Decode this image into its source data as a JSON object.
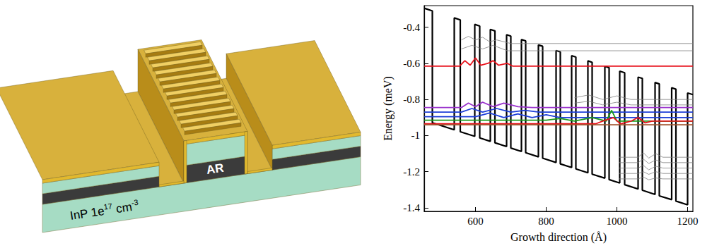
{
  "illustration": {
    "ridge_label": "AR",
    "substrate_label": [
      {
        "text": "InP 1e"
      },
      {
        "text": "17",
        "sup": true
      },
      {
        "text": " cm"
      },
      {
        "text": "-3",
        "sup": true
      }
    ]
  },
  "chart_data": {
    "type": "line",
    "xlabel": "Growth direction (Å)",
    "ylabel": "Energy (meV)",
    "xlim": [
      455,
      1215
    ],
    "ylim": [
      -1.42,
      -0.28
    ],
    "xticks": [
      600,
      800,
      1000,
      1200
    ],
    "yticks": [
      -1.4,
      -1.2,
      -1,
      -0.8,
      -0.6,
      -0.4
    ],
    "grid": false,
    "series": [
      {
        "color": "#000000",
        "line_style": "thick",
        "x": [
          455,
          478,
          478,
          540,
          540,
          557,
          557,
          598,
          598,
          612,
          612,
          642,
          642,
          655,
          655,
          688,
          688,
          700,
          700,
          730,
          730,
          742,
          742,
          778,
          778,
          790,
          790,
          828,
          828,
          840,
          840,
          872,
          872,
          884,
          884,
          918,
          918,
          930,
          930,
          966,
          966,
          978,
          978,
          1008,
          1008,
          1022,
          1022,
          1060,
          1060,
          1072,
          1072,
          1108,
          1108,
          1120,
          1120,
          1155,
          1155,
          1167,
          1167,
          1200,
          1200,
          1215
        ],
        "values": [
          -0.294,
          -0.309,
          -0.929,
          -0.968,
          -0.348,
          -0.359,
          -0.979,
          -1.004,
          -0.384,
          -0.393,
          -1.013,
          -1.032,
          -0.412,
          -0.42,
          -1.04,
          -1.061,
          -0.441,
          -0.449,
          -1.069,
          -1.088,
          -0.468,
          -0.475,
          -1.095,
          -1.118,
          -0.498,
          -0.505,
          -1.125,
          -1.149,
          -0.529,
          -0.537,
          -1.157,
          -1.177,
          -0.557,
          -0.565,
          -1.185,
          -1.206,
          -0.586,
          -0.594,
          -1.214,
          -1.236,
          -0.616,
          -0.624,
          -1.244,
          -1.263,
          -0.643,
          -0.652,
          -1.272,
          -1.296,
          -0.676,
          -0.683,
          -1.303,
          -1.326,
          -0.706,
          -0.714,
          -1.334,
          -1.355,
          -0.735,
          -0.743,
          -1.363,
          -1.384,
          -0.764,
          -0.773
        ]
      },
      {
        "color": "#808080",
        "line_style": "thin",
        "x": [
          560,
          580,
          600,
          620,
          640,
          660,
          700,
          1215
        ],
        "values": [
          -0.47,
          -0.45,
          -0.47,
          -0.455,
          -0.48,
          -0.47,
          -0.49,
          -0.49
        ]
      },
      {
        "color": "#808080",
        "line_style": "thin",
        "x": [
          560,
          590,
          620,
          650,
          690,
          740,
          1215
        ],
        "values": [
          -0.52,
          -0.5,
          -0.52,
          -0.5,
          -0.53,
          -0.53,
          -0.53
        ]
      },
      {
        "color": "#e8101a",
        "x": [
          455,
          555,
          570,
          585,
          600,
          615,
          635,
          650,
          665,
          690,
          705,
          1215
        ],
        "values": [
          -0.615,
          -0.615,
          -0.585,
          -0.61,
          -0.57,
          -0.61,
          -0.6,
          -0.585,
          -0.61,
          -0.6,
          -0.615,
          -0.615
        ]
      },
      {
        "color": "#808080",
        "line_style": "thin",
        "x": [
          880,
          920,
          960,
          1000,
          1040,
          1215
        ],
        "values": [
          -0.79,
          -0.775,
          -0.8,
          -0.78,
          -0.8,
          -0.8
        ]
      },
      {
        "color": "#808080",
        "line_style": "thin",
        "x": [
          880,
          920,
          960,
          1000,
          1040,
          1215
        ],
        "values": [
          -0.82,
          -0.81,
          -0.83,
          -0.815,
          -0.83,
          -0.83
        ]
      },
      {
        "color": "#9932cc",
        "x": [
          455,
          560,
          580,
          600,
          620,
          650,
          680,
          720,
          760,
          1215
        ],
        "values": [
          -0.845,
          -0.845,
          -0.82,
          -0.84,
          -0.815,
          -0.84,
          -0.82,
          -0.84,
          -0.845,
          -0.845
        ]
      },
      {
        "color": "#1e3fd8",
        "x": [
          455,
          560,
          590,
          620,
          660,
          700,
          740,
          780,
          1215
        ],
        "values": [
          -0.87,
          -0.87,
          -0.85,
          -0.87,
          -0.85,
          -0.87,
          -0.86,
          -0.87,
          -0.87
        ]
      },
      {
        "color": "#1e3fd8",
        "x": [
          455,
          600,
          640,
          680,
          720,
          760,
          800,
          840,
          1215
        ],
        "values": [
          -0.895,
          -0.895,
          -0.875,
          -0.9,
          -0.88,
          -0.9,
          -0.885,
          -0.9,
          -0.9
        ]
      },
      {
        "color": "#1a9a1a",
        "x": [
          455,
          800,
          840,
          880,
          930,
          970,
          985,
          1000,
          1215
        ],
        "values": [
          -0.915,
          -0.915,
          -0.905,
          -0.92,
          -0.9,
          -0.92,
          -0.86,
          -0.92,
          -0.92
        ]
      },
      {
        "color": "#e8101a",
        "x": [
          455,
          940,
          960,
          990,
          1010,
          1040,
          1060,
          1080,
          1100,
          1215
        ],
        "values": [
          -0.935,
          -0.935,
          -0.92,
          -0.9,
          -0.935,
          -0.92,
          -0.9,
          -0.93,
          -0.92,
          -0.92
        ]
      },
      {
        "color": "#a0522d",
        "x": [
          455,
          1215
        ],
        "values": [
          -0.94,
          -0.94
        ]
      },
      {
        "color": "#808080",
        "line_style": "thin",
        "x": [
          1005,
          1060,
          1075,
          1090,
          1110,
          1130,
          1215
        ],
        "values": [
          -1.12,
          -1.12,
          -1.095,
          -1.125,
          -1.1,
          -1.12,
          -1.12
        ]
      },
      {
        "color": "#808080",
        "line_style": "thin",
        "x": [
          1005,
          1060,
          1075,
          1090,
          1110,
          1130,
          1215
        ],
        "values": [
          -1.15,
          -1.15,
          -1.13,
          -1.155,
          -1.135,
          -1.15,
          -1.15
        ]
      },
      {
        "color": "#808080",
        "line_style": "thin",
        "x": [
          1005,
          1060,
          1075,
          1090,
          1110,
          1130,
          1215
        ],
        "values": [
          -1.18,
          -1.18,
          -1.165,
          -1.19,
          -1.17,
          -1.18,
          -1.18
        ]
      },
      {
        "color": "#808080",
        "line_style": "thin",
        "x": [
          1005,
          1060,
          1075,
          1090,
          1110,
          1130,
          1215
        ],
        "values": [
          -1.21,
          -1.21,
          -1.2,
          -1.215,
          -1.2,
          -1.21,
          -1.21
        ]
      },
      {
        "color": "#808080",
        "line_style": "thin",
        "x": [
          1005,
          1060,
          1075,
          1090,
          1110,
          1130,
          1215
        ],
        "values": [
          -1.24,
          -1.24,
          -1.23,
          -1.245,
          -1.235,
          -1.24,
          -1.24
        ]
      }
    ]
  }
}
